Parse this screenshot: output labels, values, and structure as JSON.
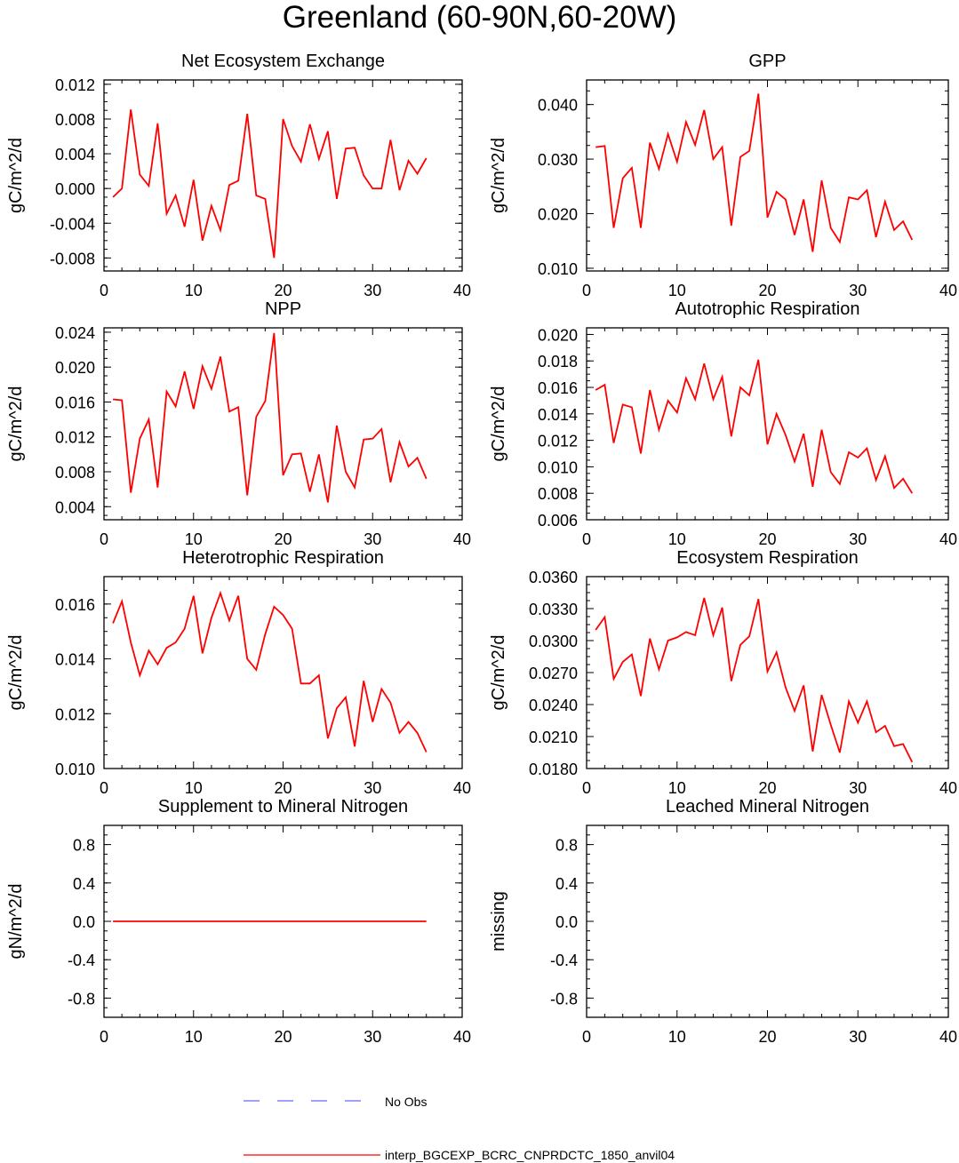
{
  "title": "Greenland (60-90N,60-20W)",
  "colors": {
    "model": "#ff0000",
    "obs": "#6666ff",
    "axis": "#000000"
  },
  "legend": {
    "obs_label": "No Obs",
    "model_label": "interp_BGCEXP_BCRC_CNPRDCTC_1850_anvil04"
  },
  "chart_data": [
    {
      "type": "line",
      "title": "Net Ecosystem Exchange",
      "ylabel": "gC/m^2/d",
      "xlim": [
        0,
        40
      ],
      "ylim": [
        -0.0095,
        0.0125
      ],
      "xticks": [
        0,
        10,
        20,
        30,
        40
      ],
      "yticks": [
        "-0.008",
        "-0.004",
        "0.000",
        "0.004",
        "0.008",
        "0.012"
      ],
      "x": [
        1,
        2,
        3,
        4,
        5,
        6,
        7,
        8,
        9,
        10,
        11,
        12,
        13,
        14,
        15,
        16,
        17,
        18,
        19,
        20,
        21,
        22,
        23,
        24,
        25,
        26,
        27,
        28,
        29,
        30,
        31,
        32,
        33,
        34,
        35,
        36
      ],
      "values": [
        -0.001,
        0.0,
        0.0091,
        0.0016,
        0.0003,
        0.0075,
        -0.0029,
        -0.0008,
        -0.0044,
        0.001,
        -0.006,
        -0.002,
        -0.0048,
        0.0004,
        0.0009,
        0.0086,
        -0.0008,
        -0.0012,
        -0.008,
        0.008,
        0.0049,
        0.0031,
        0.0074,
        0.0034,
        0.0066,
        -0.0012,
        0.0046,
        0.0047,
        0.0015,
        0.0,
        0.0,
        0.0056,
        -0.0002,
        0.0032,
        0.0017,
        0.0035
      ]
    },
    {
      "type": "line",
      "title": "GPP",
      "ylabel": "gC/m^2/d",
      "xlim": [
        0,
        40
      ],
      "ylim": [
        0.0095,
        0.0445
      ],
      "xticks": [
        0,
        10,
        20,
        30,
        40
      ],
      "yticks": [
        "0.010",
        "0.020",
        "0.030",
        "0.040"
      ],
      "x": [
        1,
        2,
        3,
        4,
        5,
        6,
        7,
        8,
        9,
        10,
        11,
        12,
        13,
        14,
        15,
        16,
        17,
        18,
        19,
        20,
        21,
        22,
        23,
        24,
        25,
        26,
        27,
        28,
        29,
        30,
        31,
        32,
        33,
        34,
        35,
        36
      ],
      "values": [
        0.0322,
        0.0324,
        0.0174,
        0.0265,
        0.0284,
        0.0174,
        0.033,
        0.0282,
        0.0346,
        0.0295,
        0.0368,
        0.0326,
        0.039,
        0.03,
        0.0322,
        0.0178,
        0.0304,
        0.0315,
        0.042,
        0.0193,
        0.024,
        0.0226,
        0.0161,
        0.0226,
        0.013,
        0.0261,
        0.0174,
        0.0148,
        0.023,
        0.0226,
        0.0243,
        0.0157,
        0.0222,
        0.017,
        0.0186,
        0.0152
      ]
    },
    {
      "type": "line",
      "title": "NPP",
      "ylabel": "gC/m^2/d",
      "xlim": [
        0,
        40
      ],
      "ylim": [
        0.0025,
        0.0245
      ],
      "xticks": [
        0,
        10,
        20,
        30,
        40
      ],
      "yticks": [
        "0.004",
        "0.008",
        "0.012",
        "0.016",
        "0.020",
        "0.024"
      ],
      "x": [
        1,
        2,
        3,
        4,
        5,
        6,
        7,
        8,
        9,
        10,
        11,
        12,
        13,
        14,
        15,
        16,
        17,
        18,
        19,
        20,
        21,
        22,
        23,
        24,
        25,
        26,
        27,
        28,
        29,
        30,
        31,
        32,
        33,
        34,
        35,
        36
      ],
      "values": [
        0.0163,
        0.0162,
        0.0056,
        0.0118,
        0.014,
        0.0062,
        0.0172,
        0.0155,
        0.0195,
        0.0152,
        0.0201,
        0.0175,
        0.0212,
        0.0149,
        0.0154,
        0.0053,
        0.0143,
        0.0161,
        0.0239,
        0.0076,
        0.01,
        0.0101,
        0.0057,
        0.01,
        0.0045,
        0.0133,
        0.008,
        0.0062,
        0.0117,
        0.0118,
        0.0129,
        0.0068,
        0.0114,
        0.0086,
        0.0096,
        0.0072
      ]
    },
    {
      "type": "line",
      "title": "Autotrophic Respiration",
      "ylabel": "gC/m^2/d",
      "xlim": [
        0,
        40
      ],
      "ylim": [
        0.006,
        0.0205
      ],
      "xticks": [
        0,
        10,
        20,
        30,
        40
      ],
      "yticks": [
        "0.006",
        "0.008",
        "0.010",
        "0.012",
        "0.014",
        "0.016",
        "0.018",
        "0.020"
      ],
      "x": [
        1,
        2,
        3,
        4,
        5,
        6,
        7,
        8,
        9,
        10,
        11,
        12,
        13,
        14,
        15,
        16,
        17,
        18,
        19,
        20,
        21,
        22,
        23,
        24,
        25,
        26,
        27,
        28,
        29,
        30,
        31,
        32,
        33,
        34,
        35,
        36
      ],
      "values": [
        0.0158,
        0.0162,
        0.0118,
        0.0147,
        0.0145,
        0.011,
        0.0158,
        0.0128,
        0.015,
        0.0141,
        0.0167,
        0.0151,
        0.0178,
        0.0151,
        0.0168,
        0.0123,
        0.016,
        0.0154,
        0.0181,
        0.0117,
        0.014,
        0.0124,
        0.0104,
        0.0125,
        0.0085,
        0.0128,
        0.0096,
        0.0087,
        0.0111,
        0.0107,
        0.0114,
        0.009,
        0.0108,
        0.0084,
        0.0091,
        0.008
      ]
    },
    {
      "type": "line",
      "title": "Heterotrophic Respiration",
      "ylabel": "gC/m^2/d",
      "xlim": [
        0,
        40
      ],
      "ylim": [
        0.01,
        0.017
      ],
      "xticks": [
        0,
        10,
        20,
        30,
        40
      ],
      "yticks": [
        "0.010",
        "0.012",
        "0.014",
        "0.016"
      ],
      "x": [
        1,
        2,
        3,
        4,
        5,
        6,
        7,
        8,
        9,
        10,
        11,
        12,
        13,
        14,
        15,
        16,
        17,
        18,
        19,
        20,
        21,
        22,
        23,
        24,
        25,
        26,
        27,
        28,
        29,
        30,
        31,
        32,
        33,
        34,
        35,
        36
      ],
      "values": [
        0.0153,
        0.0161,
        0.0146,
        0.0134,
        0.0143,
        0.0138,
        0.0144,
        0.0146,
        0.0151,
        0.0163,
        0.0142,
        0.0155,
        0.0164,
        0.0154,
        0.0163,
        0.014,
        0.0136,
        0.0149,
        0.0159,
        0.0156,
        0.0151,
        0.0131,
        0.0131,
        0.0134,
        0.0111,
        0.0122,
        0.0126,
        0.0108,
        0.0132,
        0.0117,
        0.0129,
        0.0124,
        0.0113,
        0.0117,
        0.0113,
        0.0106
      ]
    },
    {
      "type": "line",
      "title": "Ecosystem Respiration",
      "ylabel": "gC/m^2/d",
      "xlim": [
        0,
        40
      ],
      "ylim": [
        0.018,
        0.036
      ],
      "xticks": [
        0,
        10,
        20,
        30,
        40
      ],
      "yticks": [
        "0.0180",
        "0.0210",
        "0.0240",
        "0.0270",
        "0.0300",
        "0.0330",
        "0.0360"
      ],
      "x": [
        1,
        2,
        3,
        4,
        5,
        6,
        7,
        8,
        9,
        10,
        11,
        12,
        13,
        14,
        15,
        16,
        17,
        18,
        19,
        20,
        21,
        22,
        23,
        24,
        25,
        26,
        27,
        28,
        29,
        30,
        31,
        32,
        33,
        34,
        35,
        36
      ],
      "values": [
        0.031,
        0.0322,
        0.0264,
        0.028,
        0.0287,
        0.0248,
        0.0302,
        0.0273,
        0.03,
        0.0303,
        0.0308,
        0.0305,
        0.034,
        0.0305,
        0.0331,
        0.0262,
        0.0296,
        0.0304,
        0.0339,
        0.0271,
        0.0289,
        0.0256,
        0.0234,
        0.0258,
        0.0196,
        0.0249,
        0.0221,
        0.0195,
        0.0243,
        0.0223,
        0.0243,
        0.0214,
        0.022,
        0.0201,
        0.0203,
        0.0186
      ]
    },
    {
      "type": "line",
      "title": "Supplement to Mineral Nitrogen",
      "ylabel": "gN/m^2/d",
      "xlim": [
        0,
        40
      ],
      "ylim": [
        -1.0,
        1.0
      ],
      "xticks": [
        0,
        10,
        20,
        30,
        40
      ],
      "yticks": [
        "-0.8",
        "-0.4",
        "0.0",
        "0.4",
        "0.8"
      ],
      "x": [
        1,
        2,
        3,
        4,
        5,
        6,
        7,
        8,
        9,
        10,
        11,
        12,
        13,
        14,
        15,
        16,
        17,
        18,
        19,
        20,
        21,
        22,
        23,
        24,
        25,
        26,
        27,
        28,
        29,
        30,
        31,
        32,
        33,
        34,
        35,
        36
      ],
      "values": [
        0,
        0,
        0,
        0,
        0,
        0,
        0,
        0,
        0,
        0,
        0,
        0,
        0,
        0,
        0,
        0,
        0,
        0,
        0,
        0,
        0,
        0,
        0,
        0,
        0,
        0,
        0,
        0,
        0,
        0,
        0,
        0,
        0,
        0,
        0,
        0
      ]
    },
    {
      "type": "line",
      "title": "Leached Mineral Nitrogen",
      "ylabel": "missing",
      "xlim": [
        0,
        40
      ],
      "ylim": [
        -1.0,
        1.0
      ],
      "xticks": [
        0,
        10,
        20,
        30,
        40
      ],
      "yticks": [
        "-0.8",
        "-0.4",
        "0.0",
        "0.4",
        "0.8"
      ],
      "x": [],
      "values": []
    }
  ]
}
